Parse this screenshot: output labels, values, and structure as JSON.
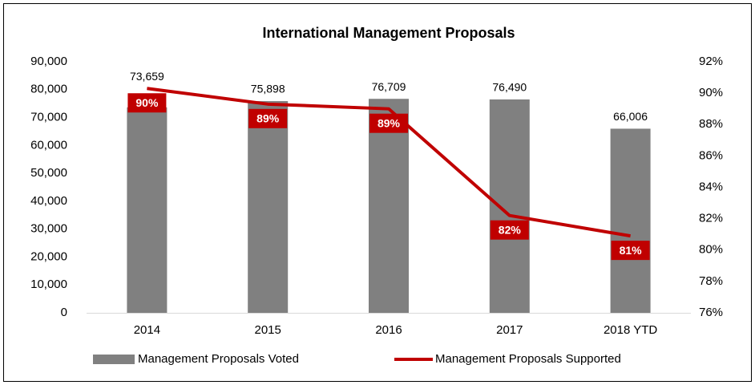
{
  "chart_data": {
    "type": "bar",
    "title": "International Management Proposals",
    "categories": [
      "2014",
      "2015",
      "2016",
      "2017",
      "2018 YTD"
    ],
    "series": [
      {
        "name": "Management Proposals Voted",
        "type": "bar",
        "color": "#808080",
        "values": [
          73659,
          75898,
          76709,
          76490,
          66006
        ],
        "value_labels": [
          "73,659",
          "75,898",
          "76,709",
          "76,490",
          "66,006"
        ]
      },
      {
        "name": "Management Proposals Supported",
        "type": "line",
        "axis": "y2",
        "color": "#c00000",
        "values": [
          90.3,
          89.3,
          89.0,
          82.2,
          80.9
        ],
        "value_labels": [
          "90%",
          "89%",
          "89%",
          "82%",
          "81%"
        ]
      }
    ],
    "ylim": [
      0,
      90000
    ],
    "yticks": [
      0,
      {
        "value": 10000,
        "label": "10,000"
      },
      {
        "value": 20000,
        "label": "20,000"
      },
      {
        "value": 30000,
        "label": "30,000"
      },
      {
        "value": 40000,
        "label": "40,000"
      },
      {
        "value": 50000,
        "label": "50,000"
      },
      {
        "value": 60000,
        "label": "60,000"
      },
      {
        "value": 70000,
        "label": "70,000"
      },
      {
        "value": 80000,
        "label": "80,000"
      },
      {
        "value": 90000,
        "label": "90,000"
      }
    ],
    "y2lim": [
      76,
      92
    ],
    "y2ticks": [
      {
        "value": 76,
        "label": "76%"
      },
      {
        "value": 78,
        "label": "78%"
      },
      {
        "value": 80,
        "label": "80%"
      },
      {
        "value": 82,
        "label": "82%"
      },
      {
        "value": 84,
        "label": "84%"
      },
      {
        "value": 86,
        "label": "86%"
      },
      {
        "value": 88,
        "label": "88%"
      },
      {
        "value": 90,
        "label": "90%"
      },
      {
        "value": 92,
        "label": "92%"
      }
    ],
    "grid": false,
    "legend": "bottom"
  }
}
